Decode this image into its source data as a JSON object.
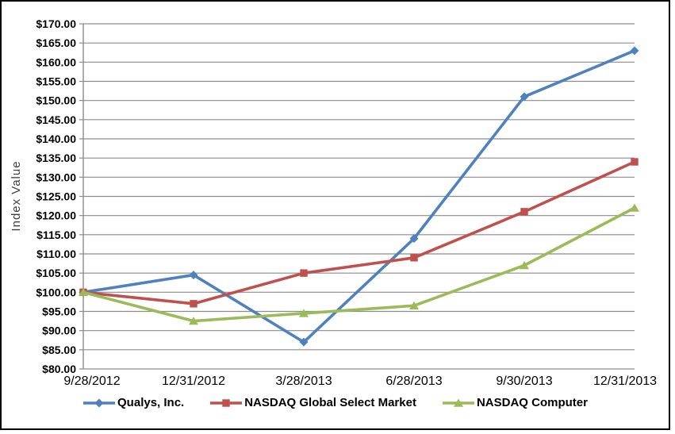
{
  "chart_data": {
    "type": "line",
    "title": "",
    "ylabel": "Index Value",
    "xlabel": "",
    "ylim": [
      80,
      170
    ],
    "y_step": 5,
    "grid": true,
    "legend_position": "bottom",
    "x": [
      "9/28/2012",
      "12/31/2012",
      "3/28/2013",
      "6/28/2013",
      "9/30/2013",
      "12/31/2013"
    ],
    "y_ticks": [
      "$170.00",
      "$165.00",
      "$160.00",
      "$155.00",
      "$150.00",
      "$145.00",
      "$140.00",
      "$135.00",
      "$130.00",
      "$125.00",
      "$120.00",
      "$115.00",
      "$110.00",
      "$105.00",
      "$100.00",
      "$95.00",
      "$90.00",
      "$85.00",
      "$80.00"
    ],
    "series": [
      {
        "name": "Qualys, Inc.",
        "marker": "diamond",
        "color": "#4F81BD",
        "values": [
          100.0,
          104.5,
          87.0,
          114.0,
          151.0,
          163.0
        ]
      },
      {
        "name": "NASDAQ Global Select Market",
        "marker": "square",
        "color": "#C0504D",
        "values": [
          100.0,
          97.0,
          105.0,
          109.0,
          121.0,
          134.0
        ]
      },
      {
        "name": "NASDAQ Computer",
        "marker": "triangle",
        "color": "#9BBB59",
        "values": [
          100.0,
          92.5,
          94.5,
          96.5,
          107.0,
          122.0
        ]
      }
    ],
    "colors": {
      "gridline": "#8C8C8C",
      "axis_line": "#8C8C8C",
      "tick_label": "#000000",
      "axis_title": "#3F3F3F",
      "frame_border": "#000000",
      "background": "#FFFFFF"
    }
  }
}
